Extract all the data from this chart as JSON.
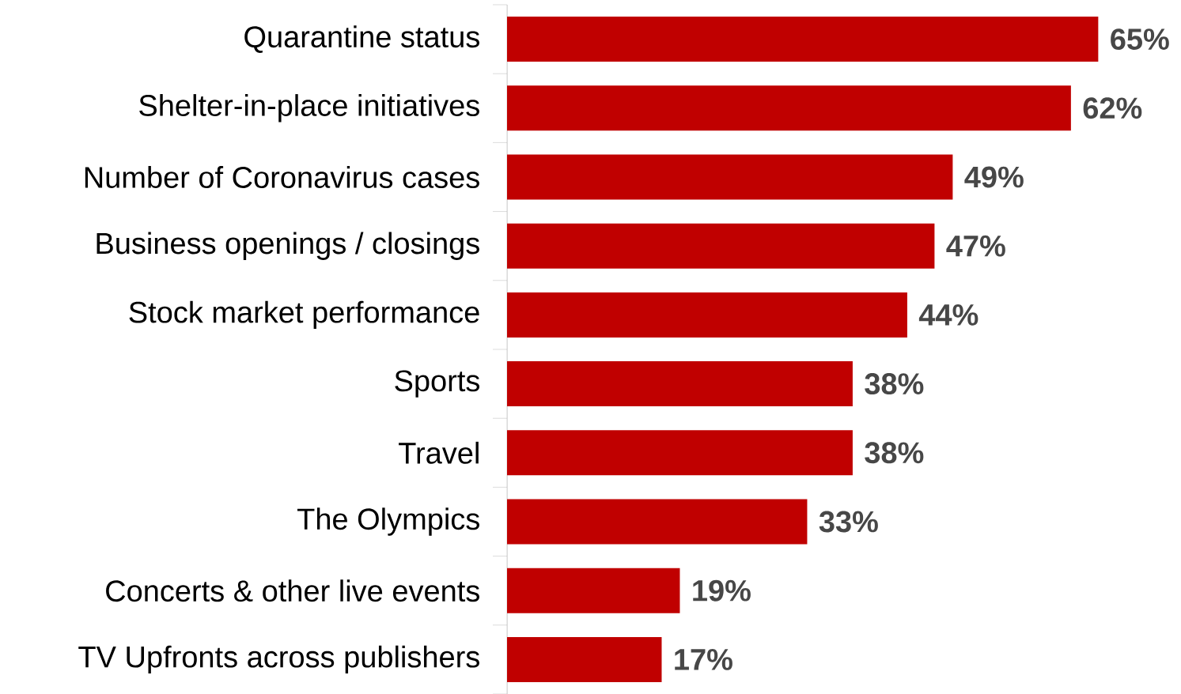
{
  "chart_data": {
    "type": "bar",
    "orientation": "horizontal",
    "color": "#c00000",
    "categories": [
      "Quarantine status",
      "Shelter-in-place initiatives",
      "Number of Coronavirus cases",
      "Business openings / closings",
      "Stock market performance",
      "Sports",
      "Travel",
      "The Olympics",
      "Concerts & other live events",
      "TV Upfronts across publishers"
    ],
    "values": [
      65,
      62,
      49,
      47,
      44,
      38,
      38,
      33,
      19,
      17
    ],
    "value_labels": [
      "65%",
      "62%",
      "49%",
      "47%",
      "44%",
      "38%",
      "38%",
      "33%",
      "19%",
      "17%"
    ]
  }
}
